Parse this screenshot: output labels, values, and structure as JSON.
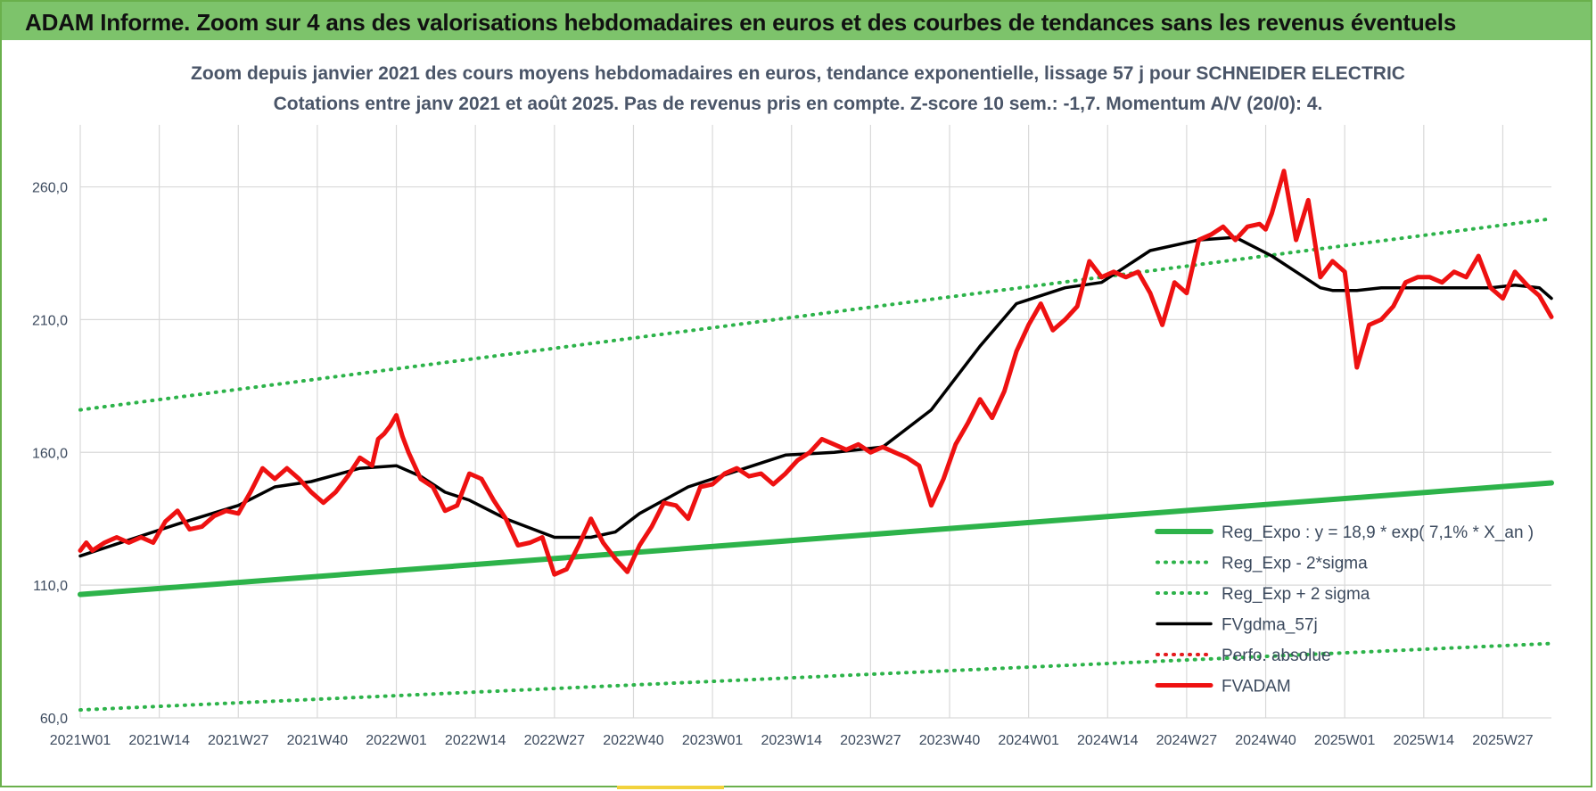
{
  "banner": {
    "title": "ADAM Informe. Zoom sur 4 ans des valorisations hebdomadaires en euros et des courbes de tendances sans les revenus éventuels",
    "color": "#7dc36b"
  },
  "chart_data": {
    "type": "line",
    "title": "Zoom depuis janvier 2021 des cours moyens hebdomadaires en euros, tendance exponentielle, lissage 57 j pour SCHNEIDER ELECTRIC",
    "subtitle": "Cotations entre janv 2021 et août 2025.  Pas de revenus pris en compte. Z-score 10 sem.: -1,7. Momentum A/V (20/0): 4.",
    "xlabel": "",
    "ylabel": "",
    "ylim": [
      60,
      280
    ],
    "yticks": [
      "60,0",
      "110,0",
      "160,0",
      "210,0",
      "260,0"
    ],
    "ytick_values": [
      60,
      110,
      160,
      210,
      260
    ],
    "xticks": [
      "2021W01",
      "2021W14",
      "2021W27",
      "2021W40",
      "2022W01",
      "2022W14",
      "2022W27",
      "2022W40",
      "2023W01",
      "2023W14",
      "2023W27",
      "2023W40",
      "2024W01",
      "2024W14",
      "2024W27",
      "2024W40",
      "2025W01",
      "2025W14",
      "2025W27"
    ],
    "x_unit": "week index since 2021W01",
    "xlim": [
      0,
      242
    ],
    "grid": true,
    "legend_position": "bottom-right",
    "series": [
      {
        "name": "Reg_Expo : y = 18,9 * exp( 7,1% *  X_an )",
        "color": "#2db34a",
        "style": "solid-thick",
        "x": [
          0,
          242
        ],
        "y": [
          106.5,
          148.5
        ]
      },
      {
        "name": "Reg_Exp - 2*sigma",
        "color": "#2db34a",
        "style": "dotted",
        "x": [
          0,
          242
        ],
        "y": [
          63,
          88
        ]
      },
      {
        "name": "Reg_Exp + 2 sigma",
        "color": "#2db34a",
        "style": "dotted",
        "x": [
          0,
          242
        ],
        "y": [
          176,
          248
        ]
      },
      {
        "name": "FVgdma_57j",
        "color": "#000000",
        "style": "solid",
        "x": [
          0,
          8,
          16,
          26,
          32,
          38,
          46,
          52,
          56,
          60,
          64,
          70,
          78,
          84,
          88,
          92,
          100,
          108,
          116,
          124,
          132,
          140,
          148,
          154,
          162,
          168,
          176,
          184,
          190,
          196,
          200,
          204,
          206,
          210,
          214,
          220,
          228,
          232,
          236,
          240,
          242
        ],
        "y": [
          121,
          127,
          133,
          140,
          147,
          149,
          154,
          155,
          151,
          145,
          142,
          135,
          128,
          128,
          130,
          137,
          147,
          153,
          159,
          160,
          162,
          176,
          200,
          216,
          222,
          224,
          236,
          240,
          241,
          234,
          228,
          222,
          221,
          221,
          222,
          222,
          222,
          222,
          223,
          222,
          218
        ]
      },
      {
        "name": "Perfo. absolue",
        "color": "#e41a1c",
        "style": "dotted",
        "x": [],
        "y": []
      },
      {
        "name": "FVADAM",
        "color": "#ee1111",
        "style": "solid-thick",
        "x": [
          0,
          1,
          2,
          4,
          6,
          8,
          10,
          12,
          14,
          16,
          18,
          20,
          22,
          24,
          26,
          28,
          30,
          32,
          34,
          36,
          38,
          40,
          42,
          44,
          46,
          48,
          49,
          50,
          51,
          52,
          53,
          54,
          56,
          58,
          60,
          62,
          64,
          66,
          68,
          70,
          72,
          74,
          76,
          78,
          80,
          82,
          84,
          86,
          88,
          90,
          92,
          94,
          96,
          98,
          100,
          102,
          104,
          106,
          108,
          110,
          112,
          114,
          116,
          118,
          120,
          122,
          124,
          126,
          128,
          130,
          132,
          134,
          136,
          138,
          140,
          142,
          144,
          146,
          148,
          150,
          152,
          154,
          156,
          158,
          160,
          162,
          164,
          166,
          168,
          170,
          172,
          174,
          176,
          178,
          180,
          182,
          184,
          186,
          188,
          190,
          192,
          194,
          195,
          196,
          198,
          200,
          202,
          204,
          206,
          208,
          210,
          212,
          214,
          216,
          218,
          220,
          222,
          224,
          226,
          228,
          230,
          232,
          234,
          236,
          238,
          240,
          242
        ],
        "y": [
          123,
          126,
          123,
          126,
          128,
          126,
          128,
          126,
          134,
          138,
          131,
          132,
          136,
          138,
          137,
          145,
          154,
          150,
          154,
          150,
          145,
          141,
          145,
          151,
          158,
          155,
          165,
          167,
          170,
          174,
          166,
          160,
          150,
          147,
          138,
          140,
          152,
          150,
          142,
          135,
          125,
          126,
          128,
          114,
          116,
          125,
          135,
          126,
          120,
          115,
          125,
          132,
          141,
          140,
          135,
          147,
          148,
          152,
          154,
          151,
          152,
          148,
          152,
          157,
          160,
          165,
          163,
          161,
          163,
          160,
          162,
          160,
          158,
          155,
          140,
          150,
          163,
          171,
          180,
          173,
          183,
          198,
          208,
          216,
          206,
          210,
          215,
          232,
          226,
          228,
          226,
          228,
          220,
          208,
          224,
          220,
          240,
          242,
          245,
          240,
          245,
          246,
          244,
          250,
          266,
          240,
          255,
          226,
          232,
          228,
          192,
          208,
          210,
          215,
          224,
          226,
          226,
          224,
          228,
          226,
          234,
          222,
          218,
          228,
          223,
          219,
          211
        ]
      }
    ]
  }
}
